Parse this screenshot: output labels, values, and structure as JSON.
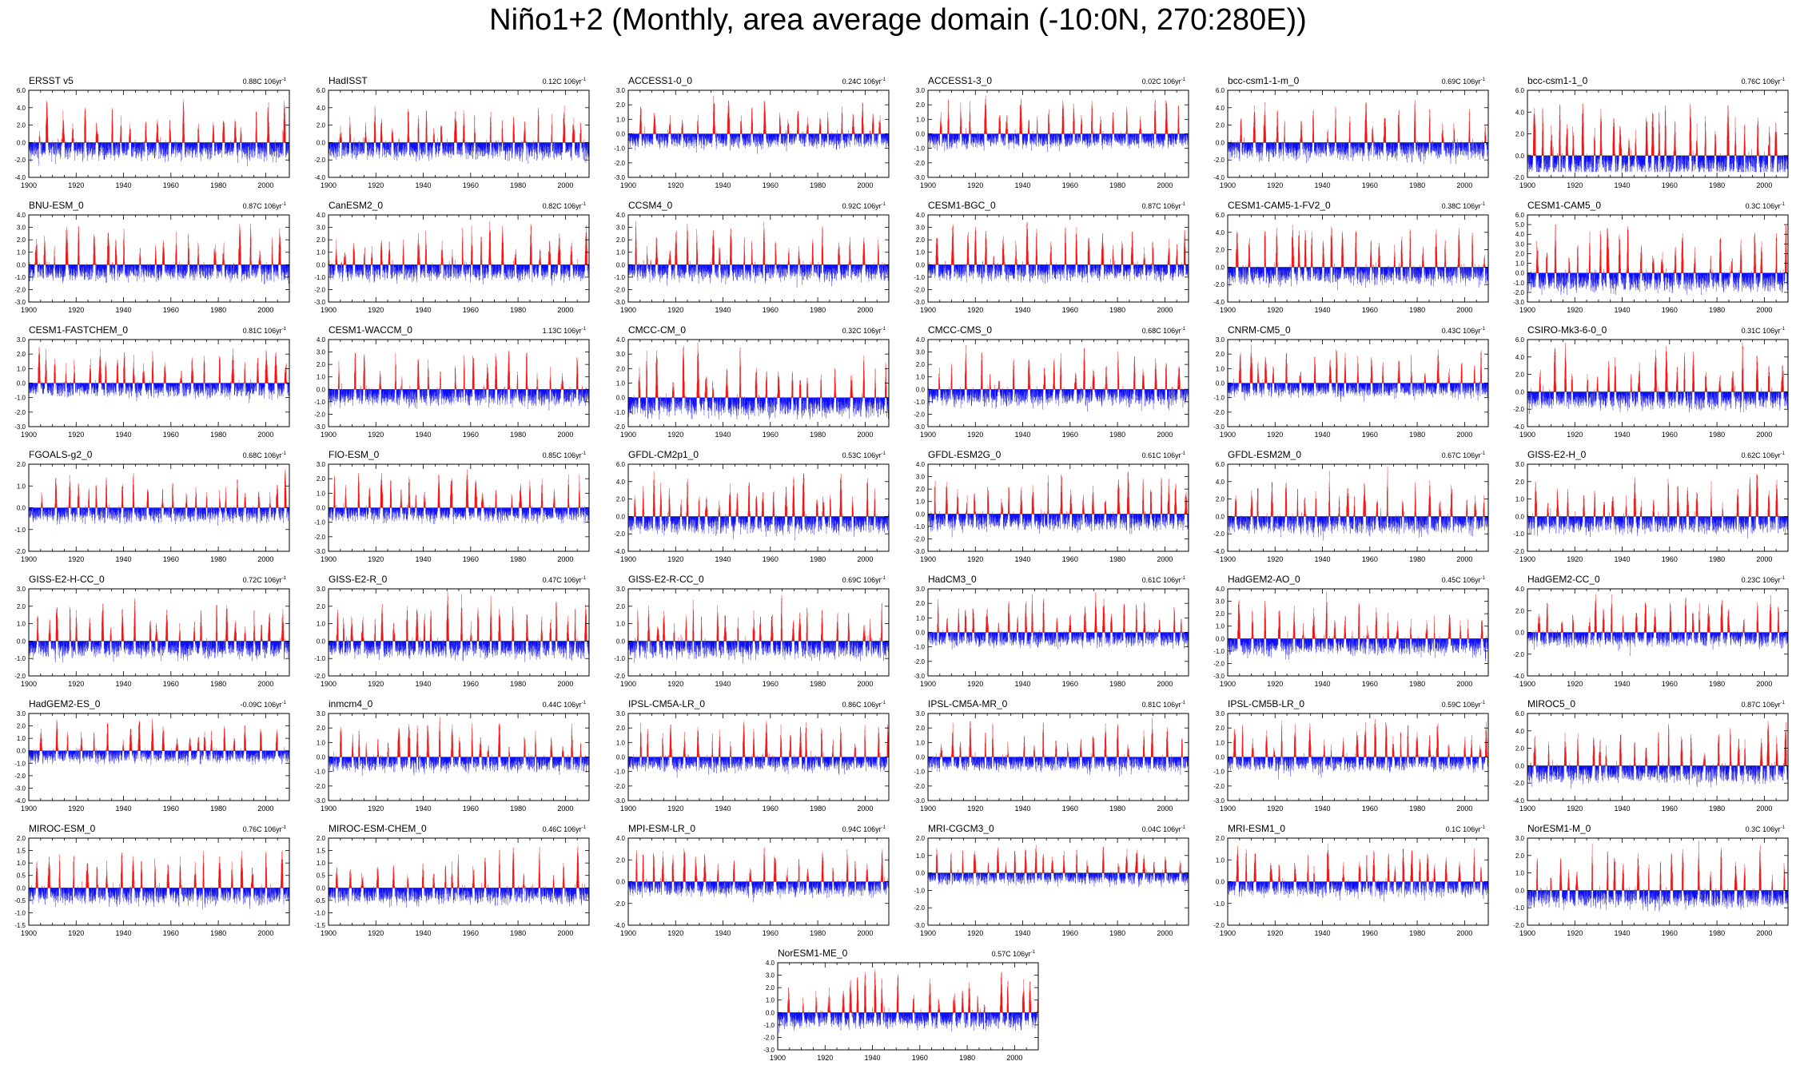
{
  "page_title": "Niño1+2 (Monthly, area average domain (-10:0N, 270:280E))",
  "colors": {
    "positive": "#ff0000",
    "negative": "#0000ff",
    "trace": "#9a9a9a"
  },
  "chart_data": [
    {
      "type": "bar",
      "name": "ERSST v5",
      "trend": "0.88C 106yr",
      "yticks": [
        "-4.0",
        "-2.0",
        "0.0",
        "2.0",
        "4.0",
        "6.0"
      ],
      "ylim": [
        -4,
        6
      ],
      "xticks": [
        1900,
        1920,
        1940,
        1960,
        1980,
        2000
      ],
      "xlim": [
        1900,
        2010
      ]
    },
    {
      "type": "bar",
      "name": "HadISST",
      "trend": "0.12C 106yr",
      "yticks": [
        "-4.0",
        "-2.0",
        "0.0",
        "2.0",
        "4.0",
        "6.0"
      ],
      "ylim": [
        -4,
        6
      ],
      "xticks": [
        1900,
        1920,
        1940,
        1960,
        1980,
        2000
      ],
      "xlim": [
        1900,
        2010
      ]
    },
    {
      "type": "bar",
      "name": "ACCESS1-0_0",
      "trend": "0.24C 106yr",
      "yticks": [
        "-3.0",
        "-2.0",
        "-1.0",
        "0.0",
        "1.0",
        "2.0",
        "3.0"
      ],
      "ylim": [
        -3,
        3
      ],
      "xticks": [
        1900,
        1920,
        1940,
        1960,
        1980,
        2000
      ],
      "xlim": [
        1900,
        2010
      ]
    },
    {
      "type": "bar",
      "name": "ACCESS1-3_0",
      "trend": "0.02C 106yr",
      "yticks": [
        "-3.0",
        "-2.0",
        "-1.0",
        "0.0",
        "1.0",
        "2.0",
        "3.0"
      ],
      "ylim": [
        -3,
        3
      ],
      "xticks": [
        1900,
        1920,
        1940,
        1960,
        1980,
        2000
      ],
      "xlim": [
        1900,
        2010
      ]
    },
    {
      "type": "bar",
      "name": "bcc-csm1-1-m_0",
      "trend": "0.69C 106yr",
      "yticks": [
        "-4.0",
        "-2.0",
        "0.0",
        "2.0",
        "4.0",
        "6.0"
      ],
      "ylim": [
        -4,
        6
      ],
      "xticks": [
        1900,
        1920,
        1940,
        1960,
        1980,
        2000
      ],
      "xlim": [
        1900,
        2010
      ]
    },
    {
      "type": "bar",
      "name": "bcc-csm1-1_0",
      "trend": "0.76C 106yr",
      "yticks": [
        "-2.0",
        "0.0",
        "2.0",
        "4.0",
        "6.0"
      ],
      "ylim": [
        -2,
        6
      ],
      "xticks": [
        1900,
        1920,
        1940,
        1960,
        1980,
        2000
      ],
      "xlim": [
        1900,
        2010
      ]
    },
    {
      "type": "bar",
      "name": "BNU-ESM_0",
      "trend": "0.87C 106yr",
      "yticks": [
        "-3.0",
        "-2.0",
        "-1.0",
        "0.0",
        "1.0",
        "2.0",
        "3.0",
        "4.0"
      ],
      "ylim": [
        -3,
        4
      ],
      "xticks": [
        1900,
        1920,
        1940,
        1960,
        1980,
        2000
      ],
      "xlim": [
        1900,
        2010
      ]
    },
    {
      "type": "bar",
      "name": "CanESM2_0",
      "trend": "0.82C 106yr",
      "yticks": [
        "-3.0",
        "-2.0",
        "-1.0",
        "0.0",
        "1.0",
        "2.0",
        "3.0",
        "4.0"
      ],
      "ylim": [
        -3,
        4
      ],
      "xticks": [
        1900,
        1920,
        1940,
        1960,
        1980,
        2000
      ],
      "xlim": [
        1900,
        2010
      ]
    },
    {
      "type": "bar",
      "name": "CCSM4_0",
      "trend": "0.92C 106yr",
      "yticks": [
        "-3.0",
        "-2.0",
        "-1.0",
        "0.0",
        "1.0",
        "2.0",
        "3.0",
        "4.0"
      ],
      "ylim": [
        -3,
        4
      ],
      "xticks": [
        1900,
        1920,
        1940,
        1960,
        1980,
        2000
      ],
      "xlim": [
        1900,
        2010
      ]
    },
    {
      "type": "bar",
      "name": "CESM1-BGC_0",
      "trend": "0.87C 106yr",
      "yticks": [
        "-3.0",
        "-2.0",
        "-1.0",
        "0.0",
        "1.0",
        "2.0",
        "3.0",
        "4.0"
      ],
      "ylim": [
        -3,
        4
      ],
      "xticks": [
        1900,
        1920,
        1940,
        1960,
        1980,
        2000
      ],
      "xlim": [
        1900,
        2010
      ]
    },
    {
      "type": "bar",
      "name": "CESM1-CAM5-1-FV2_0",
      "trend": "0.38C 106yr",
      "yticks": [
        "-4.0",
        "-2.0",
        "0.0",
        "2.0",
        "4.0",
        "6.0"
      ],
      "ylim": [
        -4,
        6
      ],
      "xticks": [
        1900,
        1920,
        1940,
        1960,
        1980,
        2000
      ],
      "xlim": [
        1900,
        2010
      ]
    },
    {
      "type": "bar",
      "name": "CESM1-CAM5_0",
      "trend": "0.3C 106yr",
      "yticks": [
        "-3.0",
        "-2.0",
        "-1.0",
        "0.0",
        "1.0",
        "2.0",
        "3.0",
        "4.0",
        "5.0",
        "6.0"
      ],
      "ylim": [
        -3,
        6
      ],
      "xticks": [
        1900,
        1920,
        1940,
        1960,
        1980,
        2000
      ],
      "xlim": [
        1900,
        2010
      ]
    },
    {
      "type": "bar",
      "name": "CESM1-FASTCHEM_0",
      "trend": "0.81C 106yr",
      "yticks": [
        "-3.0",
        "-2.0",
        "-1.0",
        "0.0",
        "1.0",
        "2.0",
        "3.0"
      ],
      "ylim": [
        -3,
        3
      ],
      "xticks": [
        1900,
        1920,
        1940,
        1960,
        1980,
        2000
      ],
      "xlim": [
        1900,
        2010
      ]
    },
    {
      "type": "bar",
      "name": "CESM1-WACCM_0",
      "trend": "1.13C 106yr",
      "yticks": [
        "-3.0",
        "-2.0",
        "-1.0",
        "0.0",
        "1.0",
        "2.0",
        "3.0",
        "4.0"
      ],
      "ylim": [
        -3,
        4
      ],
      "xticks": [
        1900,
        1920,
        1940,
        1960,
        1980,
        2000
      ],
      "xlim": [
        1900,
        2010
      ]
    },
    {
      "type": "bar",
      "name": "CMCC-CM_0",
      "trend": "0.32C 106yr",
      "yticks": [
        "-2.0",
        "-1.0",
        "0.0",
        "1.0",
        "2.0",
        "3.0",
        "4.0"
      ],
      "ylim": [
        -2,
        4
      ],
      "xticks": [
        1900,
        1920,
        1940,
        1960,
        1980,
        2000
      ],
      "xlim": [
        1900,
        2010
      ]
    },
    {
      "type": "bar",
      "name": "CMCC-CMS_0",
      "trend": "0.68C 106yr",
      "yticks": [
        "-3.0",
        "-2.0",
        "-1.0",
        "0.0",
        "1.0",
        "2.0",
        "3.0",
        "4.0"
      ],
      "ylim": [
        -3,
        4
      ],
      "xticks": [
        1900,
        1920,
        1940,
        1960,
        1980,
        2000
      ],
      "xlim": [
        1900,
        2010
      ]
    },
    {
      "type": "bar",
      "name": "CNRM-CM5_0",
      "trend": "0.43C 106yr",
      "yticks": [
        "-3.0",
        "-2.0",
        "-1.0",
        "0.0",
        "1.0",
        "2.0",
        "3.0"
      ],
      "ylim": [
        -3,
        3
      ],
      "xticks": [
        1900,
        1920,
        1940,
        1960,
        1980,
        2000
      ],
      "xlim": [
        1900,
        2010
      ]
    },
    {
      "type": "bar",
      "name": "CSIRO-Mk3-6-0_0",
      "trend": "0.31C 106yr",
      "yticks": [
        "-4.0",
        "-2.0",
        "0.0",
        "2.0",
        "4.0",
        "6.0"
      ],
      "ylim": [
        -4,
        6
      ],
      "xticks": [
        1900,
        1920,
        1940,
        1960,
        1980,
        2000
      ],
      "xlim": [
        1900,
        2010
      ]
    },
    {
      "type": "bar",
      "name": "FGOALS-g2_0",
      "trend": "0.68C 106yr",
      "yticks": [
        "-2.0",
        "-1.0",
        "0.0",
        "1.0",
        "2.0"
      ],
      "ylim": [
        -2,
        2
      ],
      "xticks": [
        1900,
        1920,
        1940,
        1960,
        1980,
        2000
      ],
      "xlim": [
        1900,
        2010
      ]
    },
    {
      "type": "bar",
      "name": "FIO-ESM_0",
      "trend": "0.85C 106yr",
      "yticks": [
        "-3.0",
        "-2.0",
        "-1.0",
        "0.0",
        "1.0",
        "2.0",
        "3.0"
      ],
      "ylim": [
        -3,
        3
      ],
      "xticks": [
        1900,
        1920,
        1940,
        1960,
        1980,
        2000
      ],
      "xlim": [
        1900,
        2010
      ]
    },
    {
      "type": "bar",
      "name": "GFDL-CM2p1_0",
      "trend": "0.53C 106yr",
      "yticks": [
        "-4.0",
        "-2.0",
        "0.0",
        "2.0",
        "4.0",
        "6.0"
      ],
      "ylim": [
        -4,
        6
      ],
      "xticks": [
        1900,
        1920,
        1940,
        1960,
        1980,
        2000
      ],
      "xlim": [
        1900,
        2010
      ]
    },
    {
      "type": "bar",
      "name": "GFDL-ESM2G_0",
      "trend": "0.61C 106yr",
      "yticks": [
        "-3.0",
        "-2.0",
        "-1.0",
        "0.0",
        "1.0",
        "2.0",
        "3.0",
        "4.0"
      ],
      "ylim": [
        -3,
        4
      ],
      "xticks": [
        1900,
        1920,
        1940,
        1960,
        1980,
        2000
      ],
      "xlim": [
        1900,
        2010
      ]
    },
    {
      "type": "bar",
      "name": "GFDL-ESM2M_0",
      "trend": "0.67C 106yr",
      "yticks": [
        "-4.0",
        "-2.0",
        "0.0",
        "2.0",
        "4.0",
        "6.0"
      ],
      "ylim": [
        -4,
        6
      ],
      "xticks": [
        1900,
        1920,
        1940,
        1960,
        1980,
        2000
      ],
      "xlim": [
        1900,
        2010
      ]
    },
    {
      "type": "bar",
      "name": "GISS-E2-H_0",
      "trend": "0.62C 106yr",
      "yticks": [
        "-2.0",
        "-1.0",
        "0.0",
        "1.0",
        "2.0",
        "3.0"
      ],
      "ylim": [
        -2,
        3
      ],
      "xticks": [
        1900,
        1920,
        1940,
        1960,
        1980,
        2000
      ],
      "xlim": [
        1900,
        2010
      ]
    },
    {
      "type": "bar",
      "name": "GISS-E2-H-CC_0",
      "trend": "0.72C 106yr",
      "yticks": [
        "-2.0",
        "-1.0",
        "0.0",
        "1.0",
        "2.0",
        "3.0"
      ],
      "ylim": [
        -2,
        3
      ],
      "xticks": [
        1900,
        1920,
        1940,
        1960,
        1980,
        2000
      ],
      "xlim": [
        1900,
        2010
      ]
    },
    {
      "type": "bar",
      "name": "GISS-E2-R_0",
      "trend": "0.47C 106yr",
      "yticks": [
        "-2.0",
        "-1.0",
        "0.0",
        "1.0",
        "2.0",
        "3.0"
      ],
      "ylim": [
        -2,
        3
      ],
      "xticks": [
        1900,
        1920,
        1940,
        1960,
        1980,
        2000
      ],
      "xlim": [
        1900,
        2010
      ]
    },
    {
      "type": "bar",
      "name": "GISS-E2-R-CC_0",
      "trend": "0.69C 106yr",
      "yticks": [
        "-2.0",
        "-1.0",
        "0.0",
        "1.0",
        "2.0",
        "3.0"
      ],
      "ylim": [
        -2,
        3
      ],
      "xticks": [
        1900,
        1920,
        1940,
        1960,
        1980,
        2000
      ],
      "xlim": [
        1900,
        2010
      ]
    },
    {
      "type": "bar",
      "name": "HadCM3_0",
      "trend": "0.61C 106yr",
      "yticks": [
        "-3.0",
        "-2.0",
        "-1.0",
        "0.0",
        "1.0",
        "2.0",
        "3.0"
      ],
      "ylim": [
        -3,
        3
      ],
      "xticks": [
        1900,
        1920,
        1940,
        1960,
        1980,
        2000
      ],
      "xlim": [
        1900,
        2010
      ]
    },
    {
      "type": "bar",
      "name": "HadGEM2-AO_0",
      "trend": "0.45C 106yr",
      "yticks": [
        "-3.0",
        "-2.0",
        "-1.0",
        "0.0",
        "1.0",
        "2.0",
        "3.0",
        "4.0"
      ],
      "ylim": [
        -3,
        4
      ],
      "xticks": [
        1900,
        1920,
        1940,
        1960,
        1980,
        2000
      ],
      "xlim": [
        1900,
        2010
      ]
    },
    {
      "type": "bar",
      "name": "HadGEM2-CC_0",
      "trend": "0.23C 106yr",
      "yticks": [
        "-4.0",
        "-2.0",
        "0.0",
        "2.0",
        "4.0"
      ],
      "ylim": [
        -4,
        4
      ],
      "xticks": [
        1900,
        1920,
        1940,
        1960,
        1980,
        2000
      ],
      "xlim": [
        1900,
        2010
      ]
    },
    {
      "type": "bar",
      "name": "HadGEM2-ES_0",
      "trend": "-0.09C 106yr",
      "yticks": [
        "-4.0",
        "-3.0",
        "-2.0",
        "-1.0",
        "0.0",
        "1.0",
        "2.0",
        "3.0"
      ],
      "ylim": [
        -4,
        3
      ],
      "xticks": [
        1900,
        1920,
        1940,
        1960,
        1980,
        2000
      ],
      "xlim": [
        1900,
        2010
      ]
    },
    {
      "type": "bar",
      "name": "inmcm4_0",
      "trend": "0.44C 106yr",
      "yticks": [
        "-3.0",
        "-2.0",
        "-1.0",
        "0.0",
        "1.0",
        "2.0",
        "3.0"
      ],
      "ylim": [
        -3,
        3
      ],
      "xticks": [
        1900,
        1920,
        1940,
        1960,
        1980,
        2000
      ],
      "xlim": [
        1900,
        2010
      ]
    },
    {
      "type": "bar",
      "name": "IPSL-CM5A-LR_0",
      "trend": "0.86C 106yr",
      "yticks": [
        "-3.0",
        "-2.0",
        "-1.0",
        "0.0",
        "1.0",
        "2.0",
        "3.0"
      ],
      "ylim": [
        -3,
        3
      ],
      "xticks": [
        1900,
        1920,
        1940,
        1960,
        1980,
        2000
      ],
      "xlim": [
        1900,
        2010
      ]
    },
    {
      "type": "bar",
      "name": "IPSL-CM5A-MR_0",
      "trend": "0.81C 106yr",
      "yticks": [
        "-3.0",
        "-2.0",
        "-1.0",
        "0.0",
        "1.0",
        "2.0",
        "3.0"
      ],
      "ylim": [
        -3,
        3
      ],
      "xticks": [
        1900,
        1920,
        1940,
        1960,
        1980,
        2000
      ],
      "xlim": [
        1900,
        2010
      ]
    },
    {
      "type": "bar",
      "name": "IPSL-CM5B-LR_0",
      "trend": "0.59C 106yr",
      "yticks": [
        "-3.0",
        "-2.0",
        "-1.0",
        "0.0",
        "1.0",
        "2.0",
        "3.0"
      ],
      "ylim": [
        -3,
        3
      ],
      "xticks": [
        1900,
        1920,
        1940,
        1960,
        1980,
        2000
      ],
      "xlim": [
        1900,
        2010
      ]
    },
    {
      "type": "bar",
      "name": "MIROC5_0",
      "trend": "0.87C 106yr",
      "yticks": [
        "-4.0",
        "-2.0",
        "0.0",
        "2.0",
        "4.0",
        "6.0"
      ],
      "ylim": [
        -4,
        6
      ],
      "xticks": [
        1900,
        1920,
        1940,
        1960,
        1980,
        2000
      ],
      "xlim": [
        1900,
        2010
      ]
    },
    {
      "type": "bar",
      "name": "MIROC-ESM_0",
      "trend": "0.76C 106yr",
      "yticks": [
        "-1.5",
        "-1.0",
        "-0.5",
        "0.0",
        "0.5",
        "1.0",
        "1.5",
        "2.0"
      ],
      "ylim": [
        -1.5,
        2
      ],
      "xticks": [
        1900,
        1920,
        1940,
        1960,
        1980,
        2000
      ],
      "xlim": [
        1900,
        2010
      ]
    },
    {
      "type": "bar",
      "name": "MIROC-ESM-CHEM_0",
      "trend": "0.46C 106yr",
      "yticks": [
        "-1.5",
        "-1.0",
        "-0.5",
        "0.0",
        "0.5",
        "1.0",
        "1.5",
        "2.0"
      ],
      "ylim": [
        -1.5,
        2
      ],
      "xticks": [
        1900,
        1920,
        1940,
        1960,
        1980,
        2000
      ],
      "xlim": [
        1900,
        2010
      ]
    },
    {
      "type": "bar",
      "name": "MPI-ESM-LR_0",
      "trend": "0.94C 106yr",
      "yticks": [
        "-4.0",
        "-2.0",
        "0.0",
        "2.0",
        "4.0"
      ],
      "ylim": [
        -4,
        4
      ],
      "xticks": [
        1900,
        1920,
        1940,
        1960,
        1980,
        2000
      ],
      "xlim": [
        1900,
        2010
      ]
    },
    {
      "type": "bar",
      "name": "MRI-CGCM3_0",
      "trend": "0.04C 106yr",
      "yticks": [
        "-3.0",
        "-2.0",
        "-1.0",
        "0.0",
        "1.0",
        "2.0"
      ],
      "ylim": [
        -3,
        2
      ],
      "xticks": [
        1900,
        1920,
        1940,
        1960,
        1980,
        2000
      ],
      "xlim": [
        1900,
        2010
      ]
    },
    {
      "type": "bar",
      "name": "MRI-ESM1_0",
      "trend": "0.1C 106yr",
      "yticks": [
        "-2.0",
        "-1.0",
        "0.0",
        "1.0",
        "2.0"
      ],
      "ylim": [
        -2,
        2
      ],
      "xticks": [
        1900,
        1920,
        1940,
        1960,
        1980,
        2000
      ],
      "xlim": [
        1900,
        2010
      ]
    },
    {
      "type": "bar",
      "name": "NorESM1-M_0",
      "trend": "0.3C 106yr",
      "yticks": [
        "-2.0",
        "-1.0",
        "0.0",
        "1.0",
        "2.0",
        "3.0"
      ],
      "ylim": [
        -2,
        3
      ],
      "xticks": [
        1900,
        1920,
        1940,
        1960,
        1980,
        2000
      ],
      "xlim": [
        1900,
        2010
      ]
    },
    {
      "type": "bar",
      "name": "NorESM1-ME_0",
      "trend": "0.57C 106yr",
      "yticks": [
        "-3.0",
        "-2.0",
        "-1.0",
        "0.0",
        "1.0",
        "2.0",
        "3.0",
        "4.0"
      ],
      "ylim": [
        -3,
        4
      ],
      "xticks": [
        1900,
        1920,
        1940,
        1960,
        1980,
        2000
      ],
      "xlim": [
        1900,
        2010
      ]
    }
  ]
}
